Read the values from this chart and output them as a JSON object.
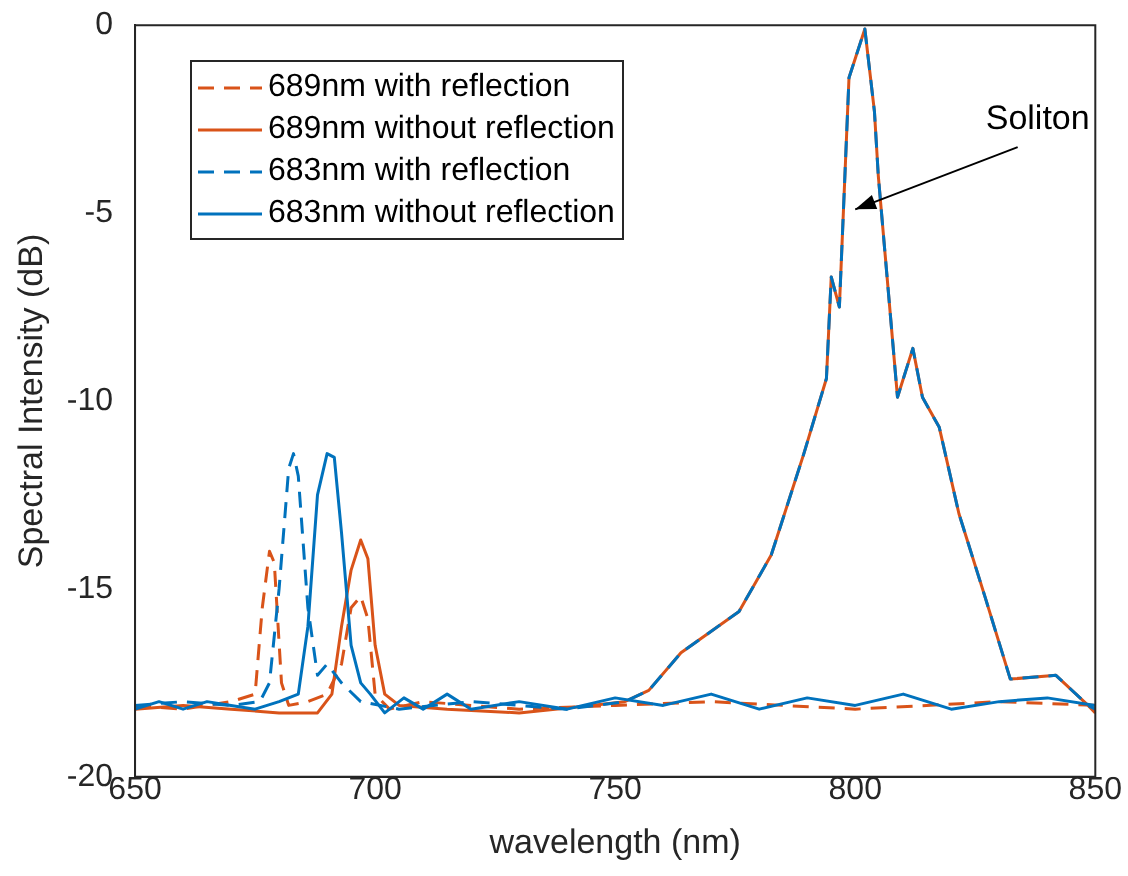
{
  "chart_data": {
    "type": "line",
    "xlabel": "wavelength (nm)",
    "ylabel": "Spectral Intensity (dB)",
    "xlim": [
      650,
      850
    ],
    "xticks": [
      650,
      700,
      750,
      800,
      850
    ],
    "ylim": [
      -20,
      0
    ],
    "yticks": [
      -20,
      -15,
      -10,
      -5,
      0
    ],
    "grid": false,
    "legend": "top left",
    "marker": "none",
    "annotations": [
      "Soliton"
    ],
    "series": [
      {
        "name": "689nm with reflection",
        "color": "#d95319",
        "line_style": "dashed",
        "x": [
          650,
          660,
          670,
          675,
          676.5,
          678,
          679,
          680.5,
          682,
          686,
          690,
          693,
          695,
          697,
          698.5,
          700,
          703,
          710,
          730,
          750,
          770,
          800,
          830,
          850
        ],
        "values": [
          -18.1,
          -18.2,
          -18.0,
          -17.8,
          -15.5,
          -14.0,
          -14.3,
          -17.5,
          -18.1,
          -18.0,
          -17.8,
          -17.0,
          -15.5,
          -15.2,
          -15.8,
          -17.8,
          -18.2,
          -18.0,
          -18.2,
          -18.1,
          -18.0,
          -18.2,
          -18.0,
          -18.1
        ]
      },
      {
        "name": "689nm without reflection",
        "color": "#d95319",
        "line_style": "solid",
        "x": [
          650,
          660,
          670,
          680,
          688,
          691,
          693,
          695,
          697,
          698.5,
          700,
          702,
          705,
          715,
          730,
          745,
          752,
          757,
          763.7,
          775.8,
          782.5,
          789.3,
          794,
          795,
          796.7,
          798.7,
          802,
          804,
          804.8,
          808.8,
          812,
          814,
          817.5,
          821.6,
          827,
          832.3,
          841.8,
          848.5,
          850
        ],
        "values": [
          -18.2,
          -18.1,
          -18.2,
          -18.3,
          -18.3,
          -17.8,
          -16.0,
          -14.5,
          -13.7,
          -14.2,
          -16.5,
          -17.8,
          -18.1,
          -18.2,
          -18.3,
          -18.1,
          -18.0,
          -17.7,
          -16.7,
          -15.6,
          -14.1,
          -11.4,
          -9.4,
          -6.7,
          -7.5,
          -1.4,
          -0.1,
          -2.3,
          -4.0,
          -9.9,
          -8.6,
          -9.9,
          -10.7,
          -13.0,
          -15.2,
          -17.4,
          -17.3,
          -18.1,
          -18.3
        ]
      },
      {
        "name": "683nm with reflection",
        "color": "#0072bd",
        "line_style": "dashed",
        "x": [
          650,
          660,
          670,
          676,
          678,
          680,
          682,
          683,
          684,
          686,
          688,
          690,
          693,
          697,
          705,
          720,
          740,
          752,
          757,
          763.7,
          775.8,
          782.5,
          789.3,
          794,
          795,
          796.7,
          798.7,
          802,
          804,
          804.8,
          808.8,
          812,
          814,
          817.5,
          821.6,
          827,
          832.3,
          841.8,
          848.5,
          850
        ],
        "values": [
          -18.1,
          -18.0,
          -18.1,
          -18.0,
          -17.5,
          -15.0,
          -11.8,
          -11.4,
          -12.0,
          -15.5,
          -17.3,
          -17.0,
          -17.5,
          -18.0,
          -18.2,
          -18.0,
          -18.2,
          -18.0,
          -17.7,
          -16.7,
          -15.6,
          -14.1,
          -11.4,
          -9.4,
          -6.7,
          -7.5,
          -1.4,
          -0.1,
          -2.3,
          -4.0,
          -9.9,
          -8.6,
          -9.9,
          -10.7,
          -13.0,
          -15.2,
          -17.4,
          -17.3,
          -18.1,
          -18.2
        ]
      },
      {
        "name": "683nm without reflection",
        "color": "#0072bd",
        "line_style": "solid",
        "x": [
          650,
          655,
          660,
          665,
          670,
          675,
          680,
          684,
          686,
          688,
          690,
          691.5,
          693,
          695,
          697,
          699,
          702,
          706,
          710,
          715,
          720,
          730,
          740,
          750,
          760,
          770,
          780,
          790,
          800,
          810,
          820,
          830,
          840,
          850
        ],
        "values": [
          -18.2,
          -18.0,
          -18.2,
          -18.0,
          -18.1,
          -18.2,
          -18.0,
          -17.8,
          -16.0,
          -12.5,
          -11.4,
          -11.5,
          -13.5,
          -16.5,
          -17.5,
          -17.8,
          -18.3,
          -17.9,
          -18.2,
          -17.8,
          -18.2,
          -18.0,
          -18.2,
          -17.9,
          -18.1,
          -17.8,
          -18.2,
          -17.9,
          -18.1,
          -17.8,
          -18.2,
          -18.0,
          -17.9,
          -18.1
        ]
      }
    ]
  }
}
